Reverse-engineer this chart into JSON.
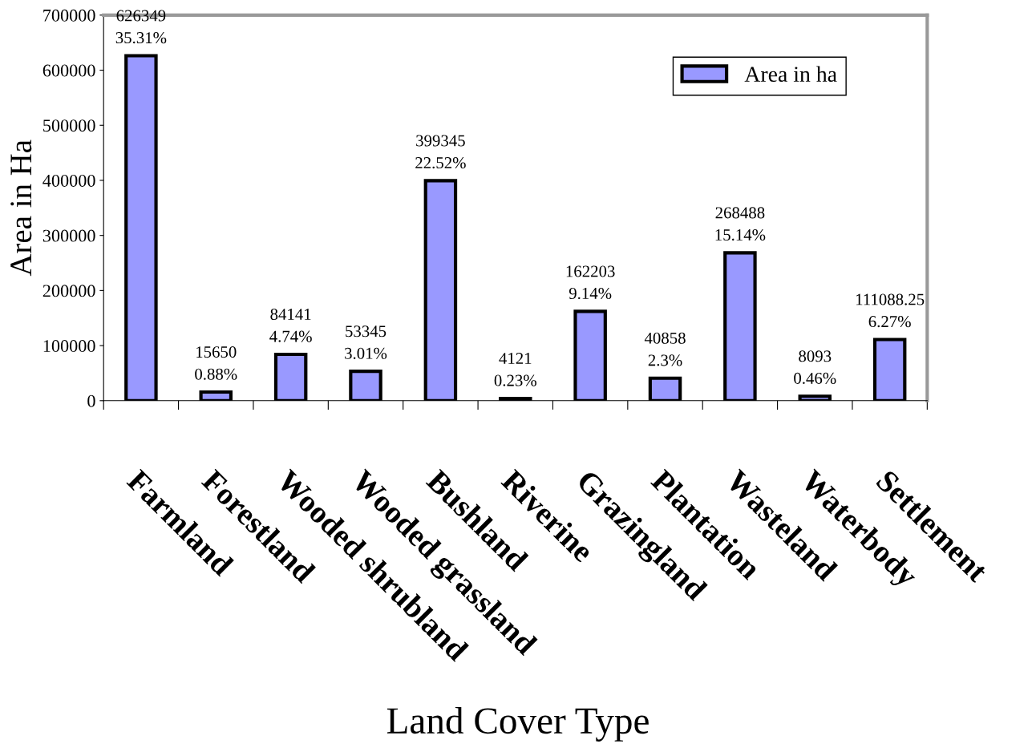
{
  "chart_data": {
    "type": "bar",
    "xlabel": "Land Cover Type",
    "ylabel": "Area in Ha",
    "categories": [
      "Farmland",
      "Forestland",
      "Wooded shrubland",
      "Wooded grassland",
      "Bushland",
      "Riverine",
      "Grazingland",
      "Plantation",
      "Wasteland",
      "Waterbody",
      "Settlement"
    ],
    "series": [
      {
        "name": "Area in ha",
        "color": "#9999ff",
        "values": [
          626349,
          15650,
          84141,
          53345,
          399345,
          4121,
          162203,
          40858,
          268488,
          8093,
          111088.25
        ],
        "value_labels": [
          "626349\n35.31%",
          "15650\n0.88%",
          "84141\n4.74%",
          "53345\n3.01%",
          "399345\n22.52%",
          "4121\n0.23%",
          "162203\n9.14%",
          "40858\n2.3%",
          "268488\n15.14%",
          "8093\n0.46%",
          "111088.25\n6.27%"
        ]
      }
    ],
    "ylim": [
      0,
      700000
    ],
    "yticks": [
      0,
      100000,
      200000,
      300000,
      400000,
      500000,
      600000,
      700000
    ],
    "grid": false,
    "legend": "top right"
  }
}
